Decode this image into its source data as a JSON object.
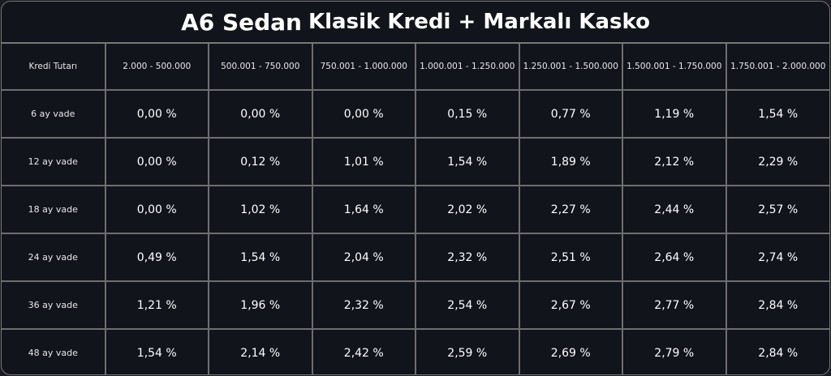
{
  "title": {
    "main": "A6 Sedan",
    "sub": "Klasik Kredi + Markalı Kasko"
  },
  "table": {
    "corner_label": "Kredi Tutarı",
    "columns": [
      "2.000 - 500.000",
      "500.001 - 750.000",
      "750.001 - 1.000.000",
      "1.000.001 - 1.250.000",
      "1.250.001 - 1.500.000",
      "1.500.001 - 1.750.000",
      "1.750.001 - 2.000.000"
    ],
    "rows": [
      {
        "label": "6 ay vade",
        "values": [
          "0,00 %",
          "0,00 %",
          "0,00 %",
          "0,15 %",
          "0,77 %",
          "1,19 %",
          "1,54 %"
        ]
      },
      {
        "label": "12 ay vade",
        "values": [
          "0,00 %",
          "0,12 %",
          "1,01 %",
          "1,54 %",
          "1,89 %",
          "2,12 %",
          "2,29 %"
        ]
      },
      {
        "label": "18 ay vade",
        "values": [
          "0,00 %",
          "1,02 %",
          "1,64 %",
          "2,02 %",
          "2,27 %",
          "2,44 %",
          "2,57 %"
        ]
      },
      {
        "label": "24 ay vade",
        "values": [
          "0,49 %",
          "1,54 %",
          "2,04 %",
          "2,32 %",
          "2,51 %",
          "2,64 %",
          "2,74 %"
        ]
      },
      {
        "label": "36 ay vade",
        "values": [
          "1,21 %",
          "1,96 %",
          "2,32 %",
          "2,54 %",
          "2,67 %",
          "2,77 %",
          "2,84 %"
        ]
      },
      {
        "label": "48 ay vade",
        "values": [
          "1,54 %",
          "2,14 %",
          "2,42 %",
          "2,59 %",
          "2,69 %",
          "2,79 %",
          "2,84 %"
        ]
      }
    ]
  }
}
